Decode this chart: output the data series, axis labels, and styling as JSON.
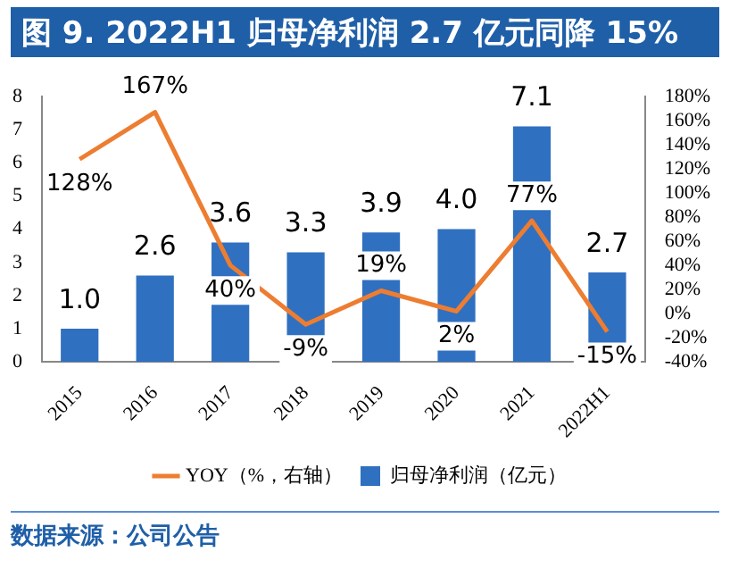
{
  "chart_data": {
    "type": "bar",
    "title": "图 9. 2022H1 归母净利润 2.7 亿元同降 15%",
    "annotations": [
      "数据来源：公司公告"
    ],
    "categories": [
      "2015",
      "2016",
      "2017",
      "2018",
      "2019",
      "2020",
      "2021",
      "2022H1"
    ],
    "series": [
      {
        "name": "归母净利润（亿元）",
        "color": "#3070c0",
        "values": [
          1.0,
          2.6,
          3.6,
          3.3,
          3.9,
          4.0,
          7.1,
          2.7
        ],
        "value_labels": [
          "1.0",
          "2.6",
          "3.6",
          "3.3",
          "3.9",
          "4.0",
          "7.1",
          "2.7"
        ]
      },
      {
        "name": "YOY（%，右轴）",
        "type": "line",
        "axis": "y2",
        "color": "#ed7d31",
        "marker": "none",
        "line_style": "solid",
        "values": [
          128,
          167,
          40,
          -9,
          19,
          2,
          77,
          -15
        ],
        "value_labels": [
          "128%",
          "167%",
          "40%",
          "-9%",
          "19%",
          "2%",
          "77%",
          "-15%"
        ]
      }
    ],
    "ylim": [
      0,
      8
    ],
    "yticks": [
      0,
      1,
      2,
      3,
      4,
      5,
      6,
      7,
      8
    ],
    "y2lim": [
      -40,
      180
    ],
    "y2ticks": [
      {
        "value": -40,
        "label": "-40%"
      },
      {
        "value": -20,
        "label": "-20%"
      },
      {
        "value": 0,
        "label": "0%"
      },
      {
        "value": 20,
        "label": "20%"
      },
      {
        "value": 40,
        "label": "40%"
      },
      {
        "value": 60,
        "label": "60%"
      },
      {
        "value": 80,
        "label": "80%"
      },
      {
        "value": 100,
        "label": "100%"
      },
      {
        "value": 120,
        "label": "120%"
      },
      {
        "value": 140,
        "label": "140%"
      },
      {
        "value": 160,
        "label": "160%"
      },
      {
        "value": 180,
        "label": "180%"
      }
    ],
    "grid": false,
    "legend": "bottom"
  }
}
